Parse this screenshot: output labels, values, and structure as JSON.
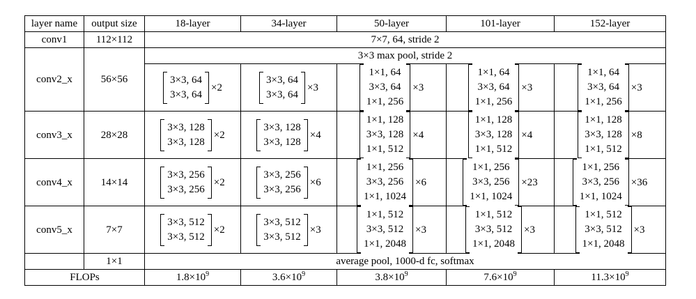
{
  "table": {
    "header": [
      "layer name",
      "output size",
      "18-layer",
      "34-layer",
      "50-layer",
      "101-layer",
      "152-layer"
    ],
    "rows": [
      {
        "name": "conv1",
        "output": "112×112",
        "span": "7×7, 64, stride 2"
      },
      {
        "name": "conv2_x",
        "output": "56×56",
        "pre": "3×3 max pool, stride 2",
        "blocks": [
          {
            "lines": [
              "3×3, 64",
              "3×3, 64"
            ],
            "times": "×2"
          },
          {
            "lines": [
              "3×3, 64",
              "3×3, 64"
            ],
            "times": "×3"
          },
          {
            "lines": [
              "1×1, 64",
              "3×3, 64",
              "1×1, 256"
            ],
            "times": "×3"
          },
          {
            "lines": [
              "1×1, 64",
              "3×3, 64",
              "1×1, 256"
            ],
            "times": "×3"
          },
          {
            "lines": [
              "1×1, 64",
              "3×3, 64",
              "1×1, 256"
            ],
            "times": "×3"
          }
        ]
      },
      {
        "name": "conv3_x",
        "output": "28×28",
        "blocks": [
          {
            "lines": [
              "3×3, 128",
              "3×3, 128"
            ],
            "times": "×2"
          },
          {
            "lines": [
              "3×3, 128",
              "3×3, 128"
            ],
            "times": "×4"
          },
          {
            "lines": [
              "1×1, 128",
              "3×3, 128",
              "1×1, 512"
            ],
            "times": "×4"
          },
          {
            "lines": [
              "1×1, 128",
              "3×3, 128",
              "1×1, 512"
            ],
            "times": "×4"
          },
          {
            "lines": [
              "1×1, 128",
              "3×3, 128",
              "1×1, 512"
            ],
            "times": "×8"
          }
        ]
      },
      {
        "name": "conv4_x",
        "output": "14×14",
        "blocks": [
          {
            "lines": [
              "3×3, 256",
              "3×3, 256"
            ],
            "times": "×2"
          },
          {
            "lines": [
              "3×3, 256",
              "3×3, 256"
            ],
            "times": "×6"
          },
          {
            "lines": [
              "1×1, 256",
              "3×3, 256",
              "1×1, 1024"
            ],
            "times": "×6"
          },
          {
            "lines": [
              "1×1, 256",
              "3×3, 256",
              "1×1, 1024"
            ],
            "times": "×23"
          },
          {
            "lines": [
              "1×1, 256",
              "3×3, 256",
              "1×1, 1024"
            ],
            "times": "×36"
          }
        ]
      },
      {
        "name": "conv5_x",
        "output": "7×7",
        "blocks": [
          {
            "lines": [
              "3×3, 512",
              "3×3, 512"
            ],
            "times": "×2"
          },
          {
            "lines": [
              "3×3, 512",
              "3×3, 512"
            ],
            "times": "×3"
          },
          {
            "lines": [
              "1×1, 512",
              "3×3, 512",
              "1×1, 2048"
            ],
            "times": "×3"
          },
          {
            "lines": [
              "1×1, 512",
              "3×3, 512",
              "1×1, 2048"
            ],
            "times": "×3"
          },
          {
            "lines": [
              "1×1, 512",
              "3×3, 512",
              "1×1, 2048"
            ],
            "times": "×3"
          }
        ]
      },
      {
        "output": "1×1",
        "span": "average pool, 1000-d fc, softmax"
      }
    ],
    "flops": {
      "label": "FLOPs",
      "values": [
        {
          "base": "1.8×10",
          "exp": "9"
        },
        {
          "base": "3.6×10",
          "exp": "9"
        },
        {
          "base": "3.8×10",
          "exp": "9"
        },
        {
          "base": "7.6×10",
          "exp": "9"
        },
        {
          "base": "11.3×10",
          "exp": "9"
        }
      ]
    }
  }
}
